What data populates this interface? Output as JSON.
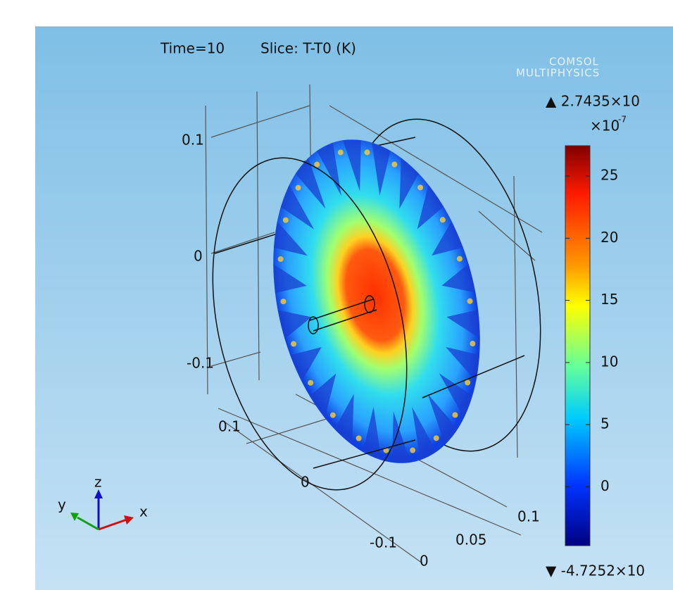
{
  "header": {
    "time": "Time=10",
    "slice": "Slice: T-T0 (K)"
  },
  "logo": {
    "line1": "COMSOL",
    "line2": "MULTIPHYSICS"
  },
  "colorbar": {
    "max_label": "▲ 2.7435×10",
    "min_label": "▼ -4.7252×10",
    "scale_label": "×10",
    "exponent": "-7",
    "clim": [
      -4.7252,
      27.435
    ],
    "ticks": [
      25,
      20,
      15,
      10,
      5,
      0
    ]
  },
  "axis_labels": [
    "0.1",
    "0",
    "-0.1",
    "0.1",
    "0",
    "0.1",
    "0.05",
    "-0.1",
    "0"
  ],
  "triad": {
    "x": "x",
    "y": "y",
    "z": "z"
  }
}
